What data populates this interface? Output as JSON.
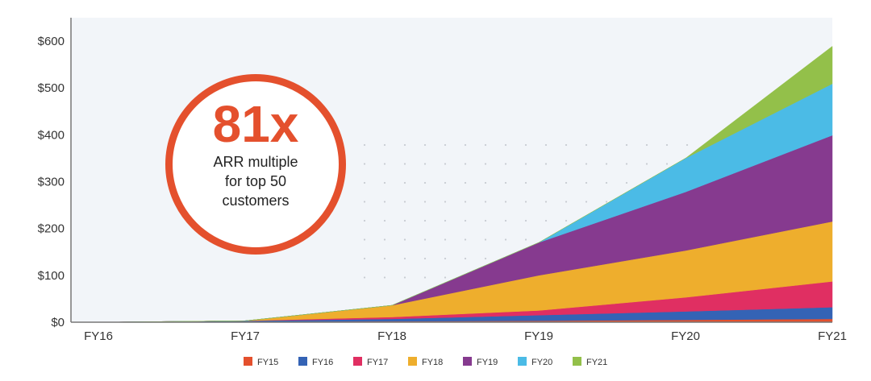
{
  "chart_data": {
    "type": "area",
    "stacked": true,
    "x": [
      "FY16",
      "FY17",
      "FY18",
      "FY19",
      "FY20",
      "FY21"
    ],
    "ylim": [
      0,
      650
    ],
    "yticks": [
      0,
      100,
      200,
      300,
      400,
      500,
      600
    ],
    "ytick_labels": [
      "$0",
      "$100",
      "$200",
      "$300",
      "$400",
      "$500",
      "$600"
    ],
    "grid": false,
    "legend_position": "bottom",
    "series": [
      {
        "name": "FY15",
        "color": "#e4502d",
        "values": [
          0,
          1,
          2,
          3,
          5,
          7
        ]
      },
      {
        "name": "FY16",
        "color": "#3463b5",
        "values": [
          0,
          2,
          5,
          12,
          18,
          25
        ]
      },
      {
        "name": "FY17",
        "color": "#e02f62",
        "values": [
          0,
          0,
          4,
          10,
          30,
          55
        ]
      },
      {
        "name": "FY18",
        "color": "#eeae2d",
        "values": [
          0,
          0,
          25,
          75,
          100,
          128
        ]
      },
      {
        "name": "FY19",
        "color": "#863a8f",
        "values": [
          0,
          0,
          0,
          70,
          125,
          184
        ]
      },
      {
        "name": "FY20",
        "color": "#4bbbe6",
        "values": [
          0,
          0,
          0,
          0,
          72,
          110
        ]
      },
      {
        "name": "FY21",
        "color": "#93c04a",
        "values": [
          0,
          0,
          0,
          0,
          0,
          80
        ]
      }
    ]
  },
  "callout": {
    "value": "81x",
    "line1": "ARR multiple",
    "line2": "for top 50",
    "line3": "customers",
    "color": "#e4502d"
  },
  "style": {
    "plot_background": "#f2f5f9",
    "axis_color": "#777777"
  }
}
